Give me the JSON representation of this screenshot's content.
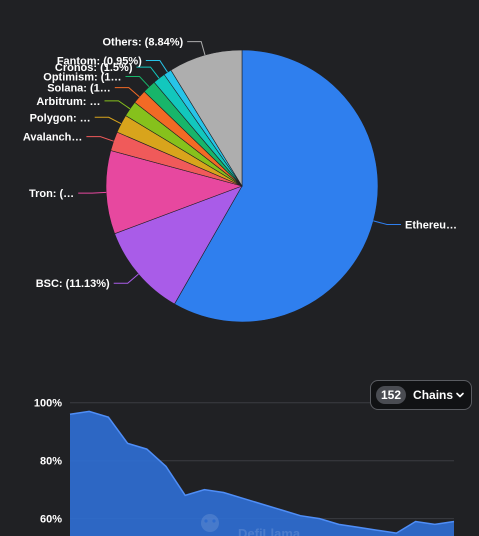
{
  "chart_data": [
    {
      "type": "pie",
      "slices": [
        {
          "label": "Ethereu…",
          "value": 58.81,
          "color": "#2f7fee"
        },
        {
          "label": "BSC: (11.13%)",
          "value": 11.13,
          "color": "#a95ce8"
        },
        {
          "label": "Tron: (…",
          "value": 10.0,
          "color": "#e7489f"
        },
        {
          "label": "Avalanch…",
          "value": 2.3,
          "color": "#f05a5a"
        },
        {
          "label": "Polygon: …",
          "value": 2.2,
          "color": "#d8a41c"
        },
        {
          "label": "Arbitrum: …",
          "value": 1.9,
          "color": "#86c11c"
        },
        {
          "label": "Solana: (1…",
          "value": 1.7,
          "color": "#f26a25"
        },
        {
          "label": "Optimism: (1…",
          "value": 1.6,
          "color": "#18b56a"
        },
        {
          "label": "Cronos: (1.5%)",
          "value": 1.5,
          "color": "#12c7bd"
        },
        {
          "label": "Fantom: (0.95%)",
          "value": 0.95,
          "color": "#27c4e8"
        },
        {
          "label": "Others: (8.84%)",
          "value": 8.84,
          "color": "#aeaeae"
        }
      ]
    },
    {
      "type": "area",
      "yticks": [
        "100%",
        "80%",
        "60%"
      ],
      "ylim": [
        54,
        103
      ],
      "color": "#2f6fd6",
      "x": [
        0,
        5,
        10,
        15,
        20,
        25,
        30,
        35,
        40,
        45,
        50,
        55,
        60,
        65,
        70,
        75,
        80,
        85,
        90,
        95,
        100
      ],
      "values": [
        96,
        97,
        95,
        86,
        84,
        78,
        68,
        70,
        69,
        67,
        65,
        63,
        61,
        60,
        58,
        57,
        56,
        55,
        59,
        58,
        59
      ]
    }
  ],
  "chains_selector": {
    "count": "152",
    "label": "Chains"
  },
  "watermark": "DefiLlama"
}
